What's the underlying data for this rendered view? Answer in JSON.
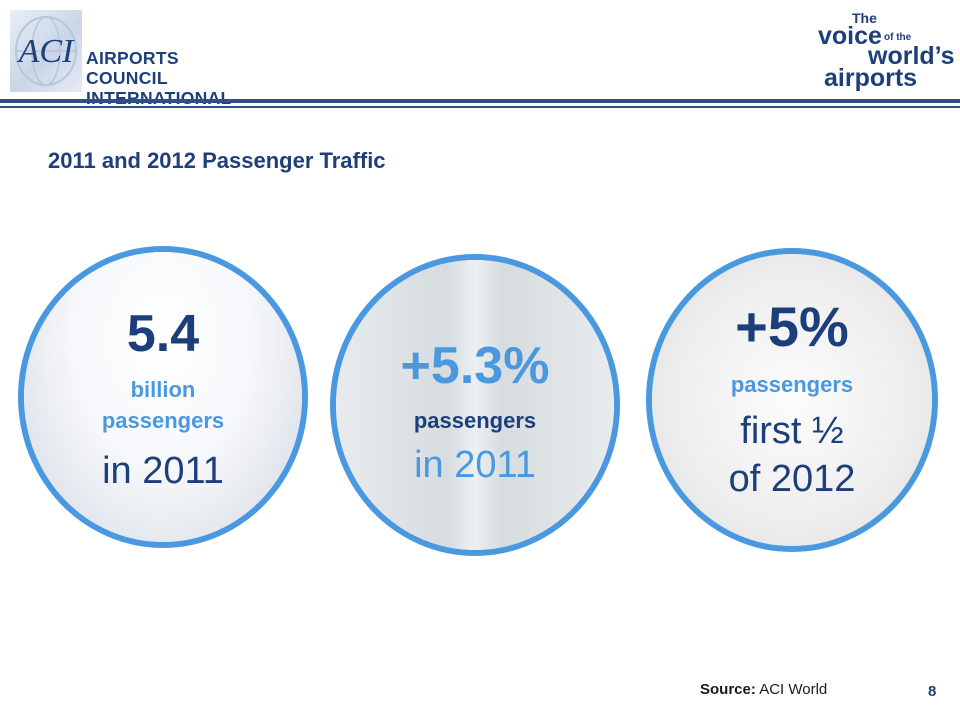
{
  "header": {
    "org_name_line1": "AIRPORTS COUNCIL",
    "org_name_line2": "INTERNATIONAL",
    "logo_mark": "ACI",
    "tagline": {
      "the": "The",
      "voice": "voice",
      "of_the": "of the",
      "worlds": "world’s",
      "airports": "airports"
    }
  },
  "slide": {
    "title": "2011 and 2012 Passenger Traffic"
  },
  "stats": [
    {
      "value": "5.4",
      "line2": "billion",
      "line3": "passengers",
      "line4": "in 2011"
    },
    {
      "value": "+5.3%",
      "line2": "passengers",
      "line3": "in 2011"
    },
    {
      "value": "+5%",
      "line2": "passengers",
      "line3": "first ½",
      "line4": "of 2012"
    }
  ],
  "footer": {
    "source_label": "Source:",
    "source_value": "ACI World",
    "page_number": "8"
  },
  "colors": {
    "brand_navy": "#1c3f7c",
    "accent_blue": "#4a98e0"
  }
}
